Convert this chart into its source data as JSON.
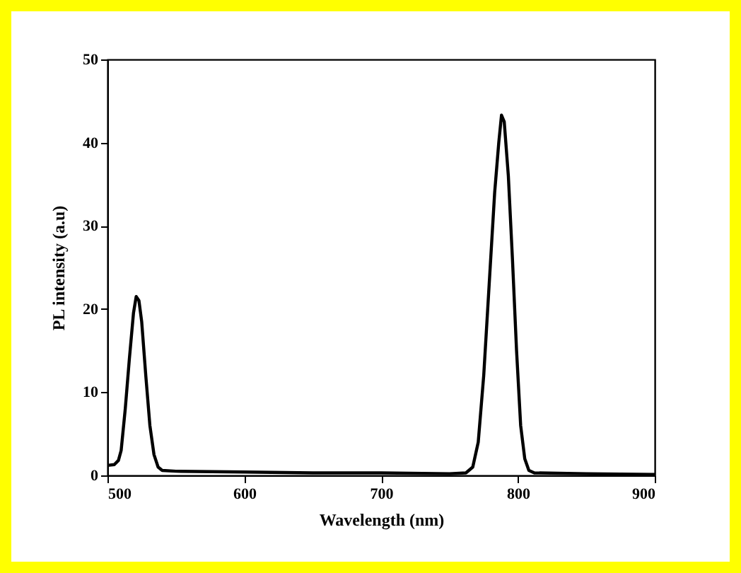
{
  "chart_data": {
    "type": "line",
    "xlabel": "Wavelength (nm)",
    "ylabel": "PL intensity (a.u)",
    "x": [
      500,
      505,
      508,
      510,
      513,
      516,
      519,
      521,
      523,
      525,
      528,
      531,
      534,
      537,
      540,
      550,
      600,
      650,
      700,
      750,
      762,
      767,
      771,
      775,
      779,
      783,
      786,
      788,
      790,
      793,
      796,
      799,
      802,
      805,
      808,
      812,
      850,
      900
    ],
    "series": [
      {
        "color": "#000000",
        "values": [
          1.2,
          1.3,
          1.8,
          3,
          8,
          14,
          19.5,
          21.5,
          21,
          18.5,
          12,
          6,
          2.5,
          1,
          0.6,
          0.5,
          0.4,
          0.3,
          0.3,
          0.2,
          0.3,
          1,
          4,
          12,
          23,
          34,
          40,
          43.3,
          42.5,
          36,
          26,
          15,
          6,
          2,
          0.6,
          0.3,
          0.2,
          0.1
        ]
      }
    ],
    "xlim": [
      500,
      900
    ],
    "xticks": [
      500,
      600,
      700,
      800,
      900
    ],
    "ylim": [
      0,
      50
    ],
    "yticks": [
      0,
      10,
      20,
      30,
      40,
      50
    ],
    "grid": false,
    "legend": false,
    "marker": "none",
    "line_style": "solid"
  }
}
